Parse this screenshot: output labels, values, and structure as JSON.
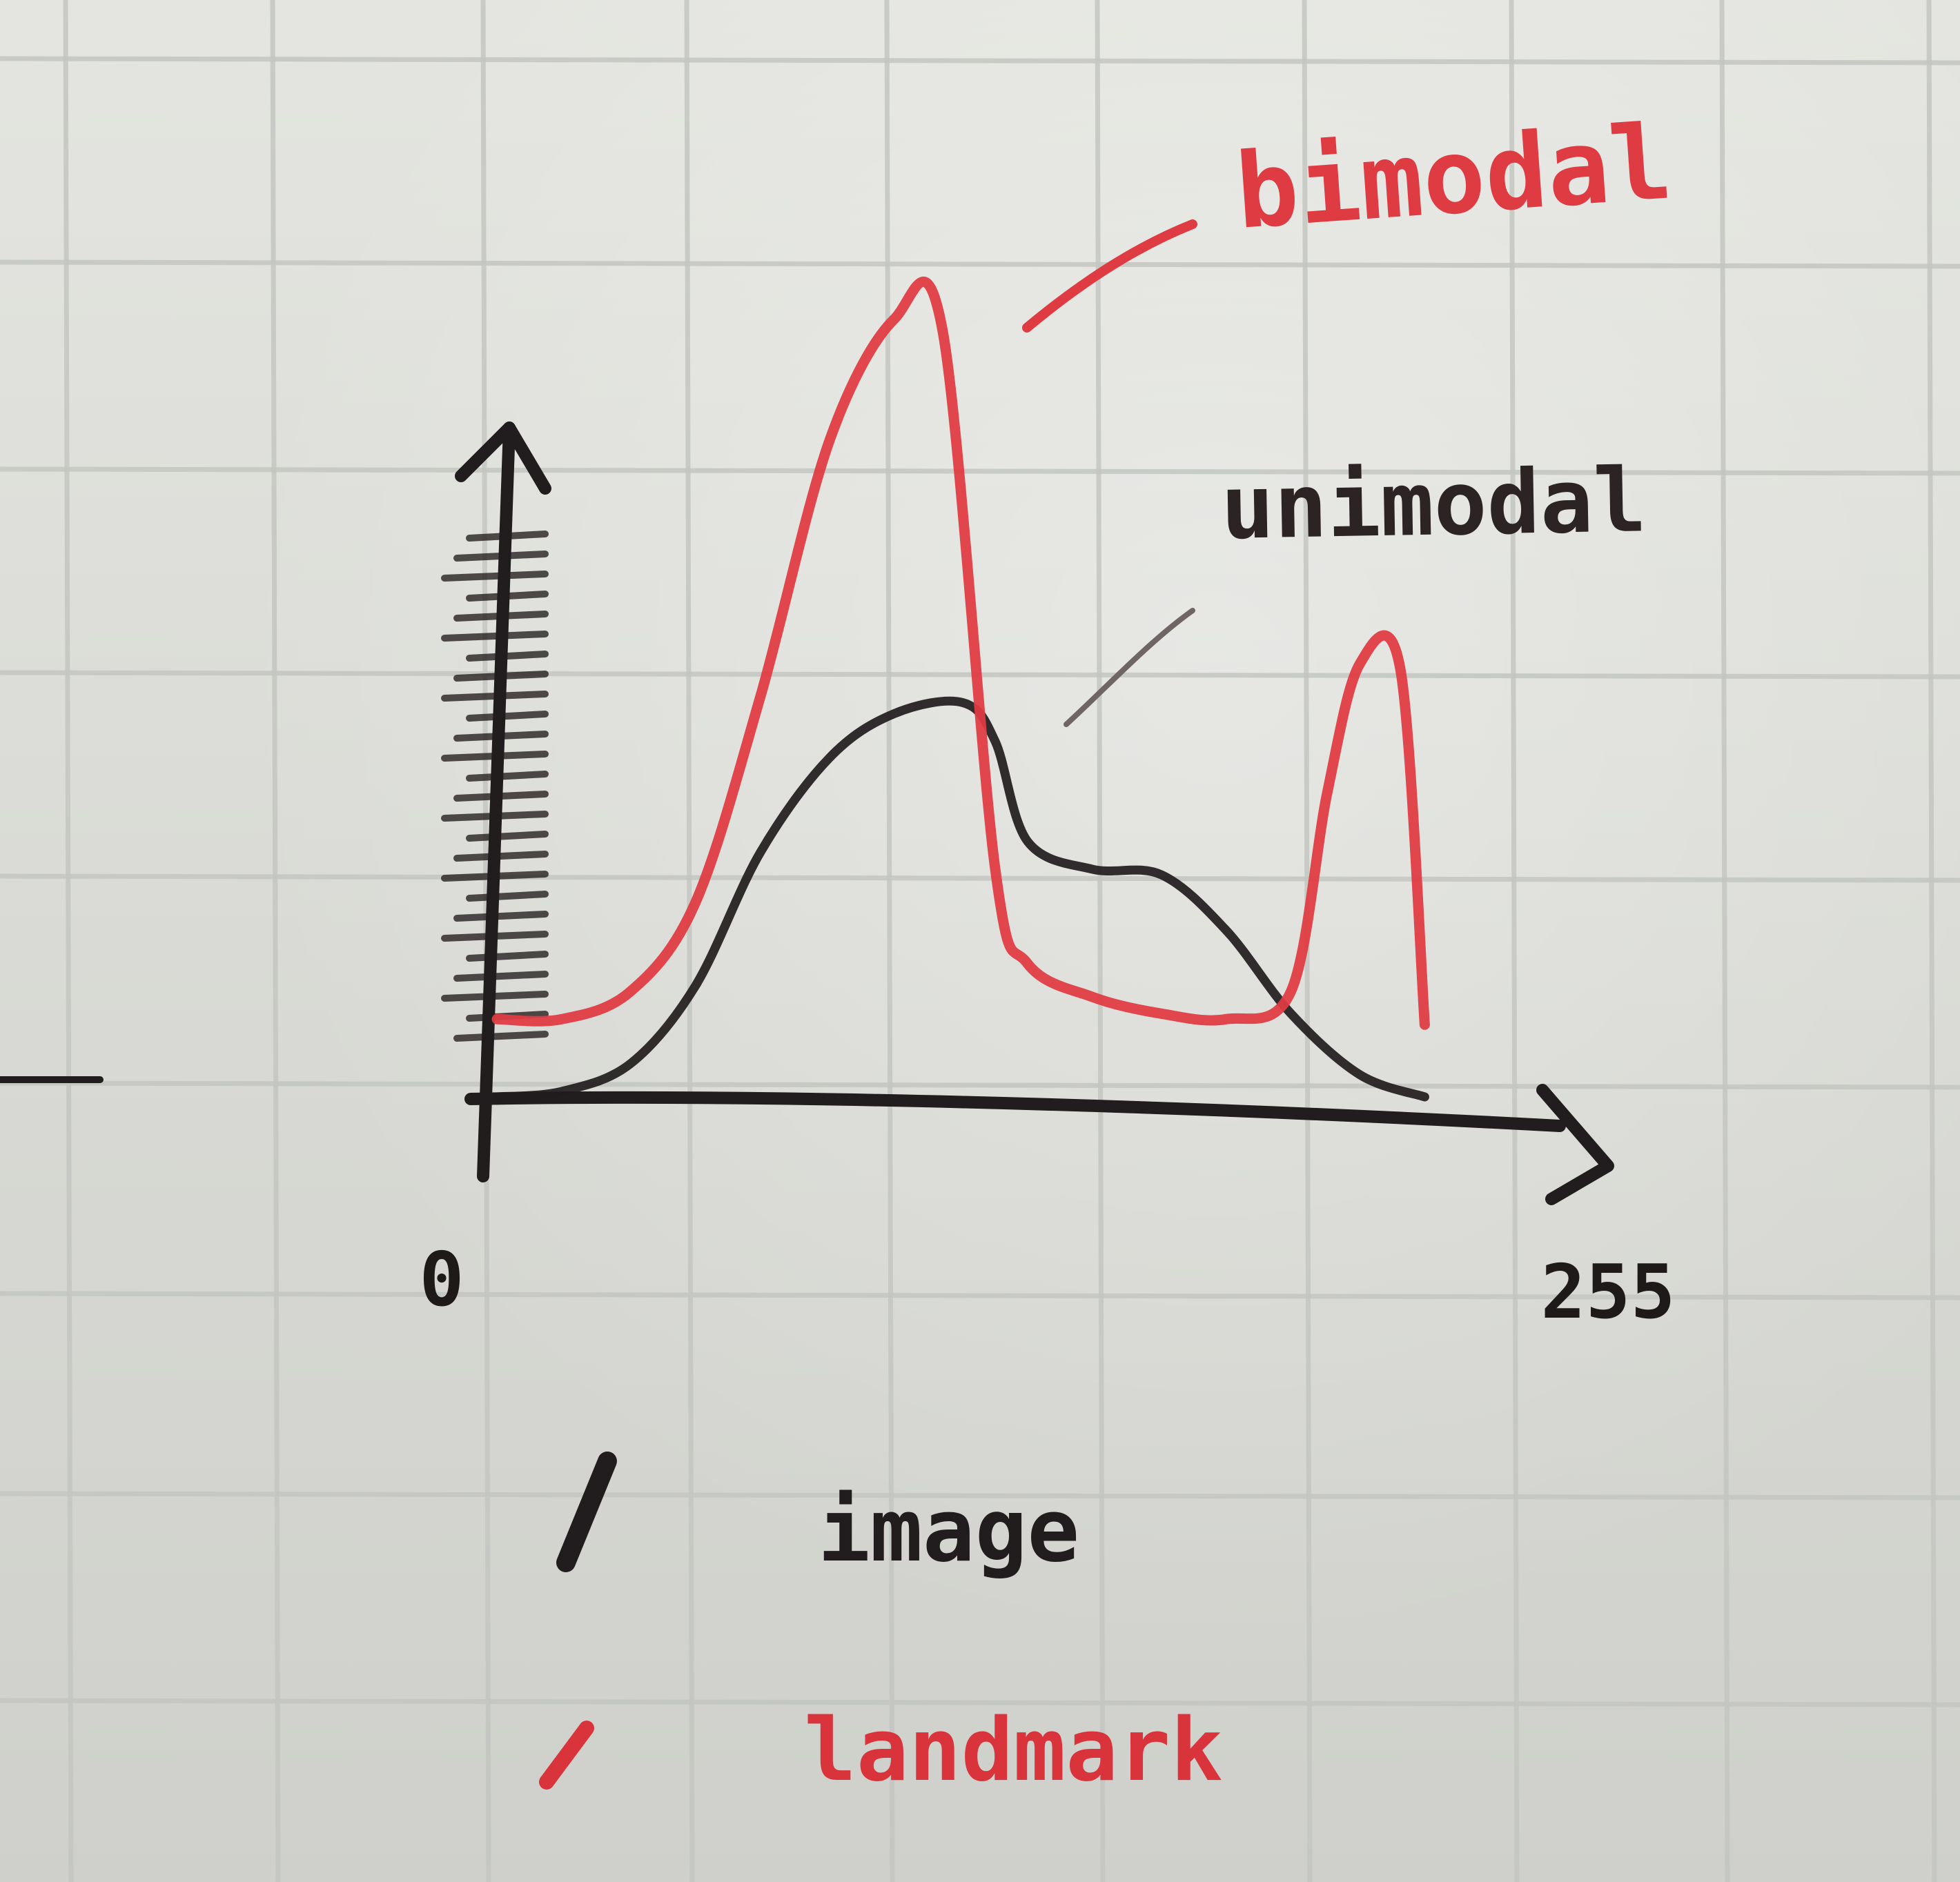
{
  "colors": {
    "paper": "#dedfda",
    "grid": "#c3c5c1",
    "ink": "#211c1d",
    "red_ink": "#df3b42"
  },
  "chart_data": {
    "type": "line",
    "x_ticks": [
      "0",
      "255"
    ],
    "xlim": [
      0,
      255
    ],
    "grid": true,
    "legend": [
      {
        "label": "image",
        "color": "#211c1d"
      },
      {
        "label": "landmark",
        "color": "#df3b42"
      }
    ],
    "annotations": [
      {
        "text": "bimodal",
        "series": "landmark"
      },
      {
        "text": "unimodal",
        "series": "image"
      }
    ],
    "series": [
      {
        "label": "unimodal",
        "color": "#211c1d",
        "points": [
          [
            0,
            0.0
          ],
          [
            16,
            0.01
          ],
          [
            33,
            0.06
          ],
          [
            49,
            0.2
          ],
          [
            65,
            0.44
          ],
          [
            82,
            0.61
          ],
          [
            98,
            0.69
          ],
          [
            115,
            0.71
          ],
          [
            123,
            0.64
          ],
          [
            131,
            0.46
          ],
          [
            147,
            0.41
          ],
          [
            164,
            0.4
          ],
          [
            180,
            0.3
          ],
          [
            196,
            0.15
          ],
          [
            213,
            0.04
          ],
          [
            229,
            0.0
          ]
        ]
      },
      {
        "label": "bimodal",
        "color": "#df3b42",
        "points": [
          [
            0,
            0.14
          ],
          [
            16,
            0.14
          ],
          [
            33,
            0.19
          ],
          [
            49,
            0.35
          ],
          [
            65,
            0.72
          ],
          [
            82,
            1.18
          ],
          [
            98,
            1.4
          ],
          [
            110,
            1.38
          ],
          [
            123,
            0.41
          ],
          [
            131,
            0.24
          ],
          [
            147,
            0.18
          ],
          [
            164,
            0.15
          ],
          [
            180,
            0.14
          ],
          [
            196,
            0.19
          ],
          [
            205,
            0.55
          ],
          [
            213,
            0.78
          ],
          [
            223,
            0.77
          ],
          [
            229,
            0.13
          ]
        ]
      }
    ]
  }
}
